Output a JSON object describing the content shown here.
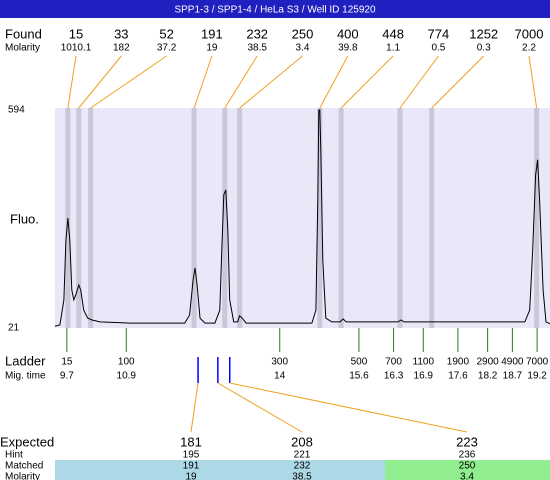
{
  "title": "SPP1-3 / SPP1-4 / HeLa S3 / Well ID 125920",
  "found_label": "Found",
  "molarity_label": "Molarity",
  "fluo_label": "Fluo.",
  "peaks": [
    {
      "size": 15,
      "molarity": 1010.1,
      "time": 9.72
    },
    {
      "size": 33,
      "molarity": 182,
      "time": 9.94
    },
    {
      "size": 52,
      "molarity": 37.2,
      "time": 10.18
    },
    {
      "size": 191,
      "molarity": 19,
      "time": 12.27
    },
    {
      "size": 232,
      "molarity": 38.5,
      "time": 12.89
    },
    {
      "size": 250,
      "molarity": 3.4,
      "time": 13.19
    },
    {
      "size": 400,
      "molarity": 39.8,
      "time": 14.81
    },
    {
      "size": 448,
      "molarity": 1.1,
      "time": 15.24
    },
    {
      "size": 774,
      "molarity": 0.5,
      "time": 16.43
    },
    {
      "size": 1252,
      "molarity": 0.3,
      "time": 17.07
    },
    {
      "size": 7000,
      "molarity": 2.2,
      "time": 19.19
    }
  ],
  "xlim": [
    9.46,
    19.46
  ],
  "ylim": [
    21,
    594
  ],
  "yticks": [
    21,
    594
  ],
  "trace": {
    "x": [
      9.46,
      9.56,
      9.64,
      9.68,
      9.72,
      9.76,
      9.8,
      9.84,
      9.88,
      9.94,
      9.98,
      10.04,
      10.12,
      10.21,
      10.37,
      10.97,
      12.08,
      12.18,
      12.25,
      12.29,
      12.33,
      12.39,
      12.49,
      12.69,
      12.79,
      12.83,
      12.87,
      12.91,
      12.95,
      12.99,
      13.07,
      13.15,
      13.19,
      13.24,
      13.32,
      14.41,
      14.65,
      14.73,
      14.77,
      14.79,
      14.81,
      14.83,
      14.87,
      14.93,
      15.05,
      15.22,
      15.28,
      15.34,
      16.39,
      16.45,
      16.51,
      17.08,
      17.16,
      18.95,
      19.05,
      19.11,
      19.17,
      19.21,
      19.25,
      19.32,
      19.38,
      19.46
    ],
    "y": [
      26,
      29,
      95,
      252,
      310,
      252,
      121,
      95,
      108,
      134,
      121,
      68,
      47,
      42,
      37,
      34,
      34,
      55,
      147,
      179,
      134,
      47,
      34,
      34,
      68,
      226,
      371,
      384,
      279,
      95,
      37,
      37,
      53,
      47,
      34,
      34,
      34,
      68,
      358,
      594,
      594,
      489,
      200,
      47,
      37,
      37,
      45,
      37,
      37,
      42,
      37,
      37,
      37,
      37,
      68,
      226,
      423,
      463,
      358,
      121,
      37,
      32
    ]
  },
  "ladder_label": "Ladder",
  "mig_label": "Mig. time",
  "ladder": [
    {
      "size": 15,
      "time": 9.7
    },
    {
      "size": 100,
      "time": 10.9
    },
    {
      "size": 300,
      "time": 14
    },
    {
      "size": 500,
      "time": 15.6
    },
    {
      "size": 700,
      "time": 16.3
    },
    {
      "size": 1100,
      "time": 16.9
    },
    {
      "size": 1900,
      "time": 17.6
    },
    {
      "size": 2900,
      "time": 18.2
    },
    {
      "size": 4900,
      "time": 18.7
    },
    {
      "size": 7000,
      "time": 19.2
    }
  ],
  "expected_labels": {
    "expected": "Expected",
    "hint": "Hint",
    "matched": "Matched",
    "molarity": "Molarity"
  },
  "expected": [
    {
      "expected": 181,
      "time": 12.35,
      "hint": 195,
      "matched": 191,
      "molarity": 19,
      "color": "#add8e6"
    },
    {
      "expected": 208,
      "time": 12.75,
      "hint": 221,
      "matched": 232,
      "molarity": 38.5,
      "color": "#add8e6"
    },
    {
      "expected": 223,
      "time": 12.99,
      "hint": 236,
      "matched": 250,
      "molarity": 3.4,
      "color": "#90ee90"
    }
  ]
}
